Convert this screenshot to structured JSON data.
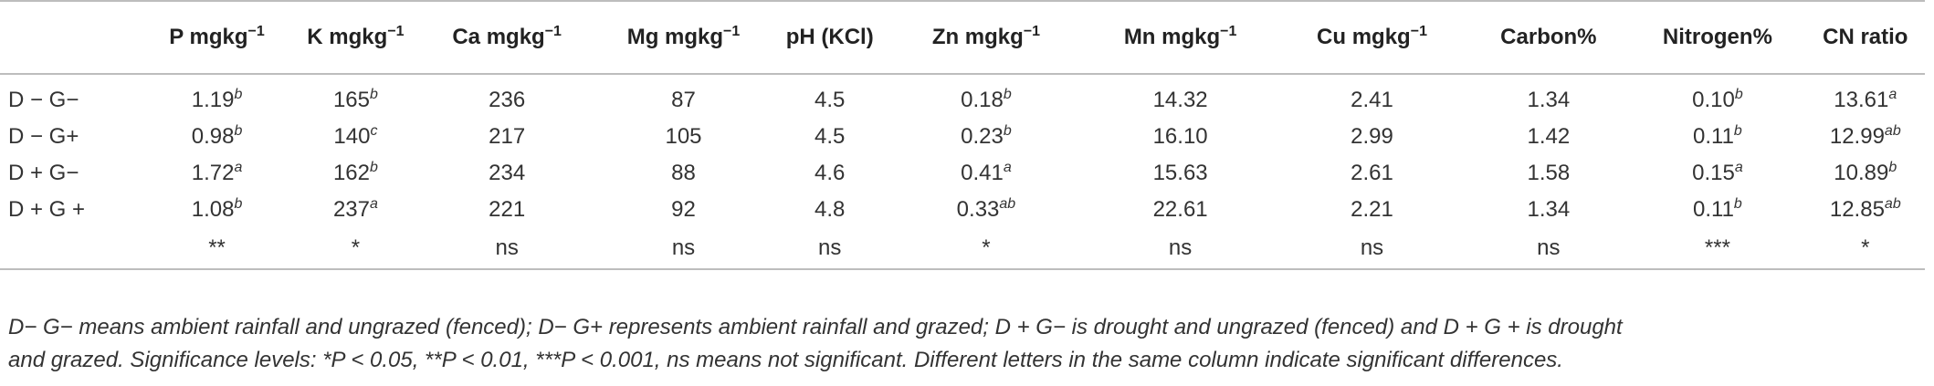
{
  "table": {
    "headers": [
      {
        "base": "",
        "sup": ""
      },
      {
        "base": "P mgkg",
        "sup": "−1"
      },
      {
        "base": "K mgkg",
        "sup": "−1"
      },
      {
        "base": "Ca mgkg",
        "sup": "−1"
      },
      {
        "base": "Mg mgkg",
        "sup": "−1"
      },
      {
        "base": "pH (KCl)",
        "sup": ""
      },
      {
        "base": "Zn mgkg",
        "sup": "−1"
      },
      {
        "base": "Mn mgkg",
        "sup": "−1"
      },
      {
        "base": "Cu mgkg",
        "sup": "−1"
      },
      {
        "base": "Carbon%",
        "sup": ""
      },
      {
        "base": "Nitrogen%",
        "sup": ""
      },
      {
        "base": "CN ratio",
        "sup": ""
      }
    ],
    "rows": [
      {
        "label": "D − G−",
        "cells": [
          {
            "v": "1.19",
            "s": "b"
          },
          {
            "v": "165",
            "s": "b"
          },
          {
            "v": "236",
            "s": ""
          },
          {
            "v": "87",
            "s": ""
          },
          {
            "v": "4.5",
            "s": ""
          },
          {
            "v": "0.18",
            "s": "b"
          },
          {
            "v": "14.32",
            "s": ""
          },
          {
            "v": "2.41",
            "s": ""
          },
          {
            "v": "1.34",
            "s": ""
          },
          {
            "v": "0.10",
            "s": "b"
          },
          {
            "v": "13.61",
            "s": "a"
          }
        ]
      },
      {
        "label": "D − G+",
        "cells": [
          {
            "v": "0.98",
            "s": "b"
          },
          {
            "v": "140",
            "s": "c"
          },
          {
            "v": "217",
            "s": ""
          },
          {
            "v": "105",
            "s": ""
          },
          {
            "v": "4.5",
            "s": ""
          },
          {
            "v": "0.23",
            "s": "b"
          },
          {
            "v": "16.10",
            "s": ""
          },
          {
            "v": "2.99",
            "s": ""
          },
          {
            "v": "1.42",
            "s": ""
          },
          {
            "v": "0.11",
            "s": "b"
          },
          {
            "v": "12.99",
            "s": "ab"
          }
        ]
      },
      {
        "label": "D + G−",
        "cells": [
          {
            "v": "1.72",
            "s": "a"
          },
          {
            "v": "162",
            "s": "b"
          },
          {
            "v": "234",
            "s": ""
          },
          {
            "v": "88",
            "s": ""
          },
          {
            "v": "4.6",
            "s": ""
          },
          {
            "v": "0.41",
            "s": "a"
          },
          {
            "v": "15.63",
            "s": ""
          },
          {
            "v": "2.61",
            "s": ""
          },
          {
            "v": "1.58",
            "s": ""
          },
          {
            "v": "0.15",
            "s": "a"
          },
          {
            "v": "10.89",
            "s": "b"
          }
        ]
      },
      {
        "label": "D + G +",
        "cells": [
          {
            "v": "1.08",
            "s": "b"
          },
          {
            "v": "237",
            "s": "a"
          },
          {
            "v": "221",
            "s": ""
          },
          {
            "v": "92",
            "s": ""
          },
          {
            "v": "4.8",
            "s": ""
          },
          {
            "v": "0.33",
            "s": "ab"
          },
          {
            "v": "22.61",
            "s": ""
          },
          {
            "v": "2.21",
            "s": ""
          },
          {
            "v": "1.34",
            "s": ""
          },
          {
            "v": "0.11",
            "s": "b"
          },
          {
            "v": "12.85",
            "s": "ab"
          }
        ]
      }
    ],
    "significance": [
      "**",
      "*",
      "ns",
      "ns",
      "ns",
      "*",
      "ns",
      "ns",
      "ns",
      "***",
      "*"
    ]
  },
  "footnote": {
    "line1": "D− G− means ambient rainfall and ungrazed (fenced); D− G+ represents ambient rainfall and grazed; D + G− is drought and ungrazed (fenced) and D + G + is drought",
    "line2": "and grazed. Significance levels: *P < 0.05, **P < 0.01, ***P < 0.001, ns means not significant. Different letters in the same column indicate significant differences."
  }
}
